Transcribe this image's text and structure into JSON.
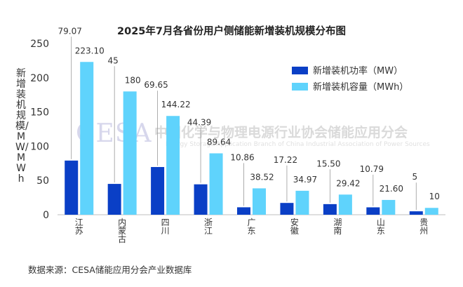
{
  "chart_data": {
    "type": "bar",
    "title": "2025年7月各省份用户侧储能新增装机规模分布图",
    "ylabel": "新增装机规模/MW/MWh",
    "ylim": [
      0,
      250
    ],
    "yticks": [
      0,
      50,
      100,
      150,
      200,
      250
    ],
    "categories": [
      "江苏",
      "内蒙古",
      "四川",
      "浙江",
      "广东",
      "安徽",
      "湖南",
      "山东",
      "贵州"
    ],
    "series": [
      {
        "name": "新增装机功率（MW）",
        "color": "#0a3fc6",
        "values": [
          79.07,
          45,
          69.65,
          44.39,
          10.86,
          17.22,
          15.5,
          10.79,
          5
        ],
        "labels": [
          "79.07",
          "45",
          "69.65",
          "44.39",
          "10.86",
          "17.22",
          "15.50",
          "10.79",
          "5"
        ]
      },
      {
        "name": "新增装机容量（MWh）",
        "color": "#5fd3fc",
        "values": [
          223.1,
          180,
          144.22,
          89.64,
          38.52,
          34.97,
          29.42,
          21.6,
          10
        ],
        "labels": [
          "223.10",
          "180",
          "144.22",
          "89.64",
          "38.52",
          "34.97",
          "29.42",
          "21.60",
          "10"
        ]
      }
    ],
    "grid": false,
    "legend_position": "top-right"
  },
  "source_note": "数据来源：CESA储能应用分会产业数据库",
  "watermark": {
    "logo": "CESA",
    "cn": "中国化学与物理电源行业协会储能应用分会",
    "en": "Energy Storage Application Branch of China Industrial Association of Power Sources"
  }
}
